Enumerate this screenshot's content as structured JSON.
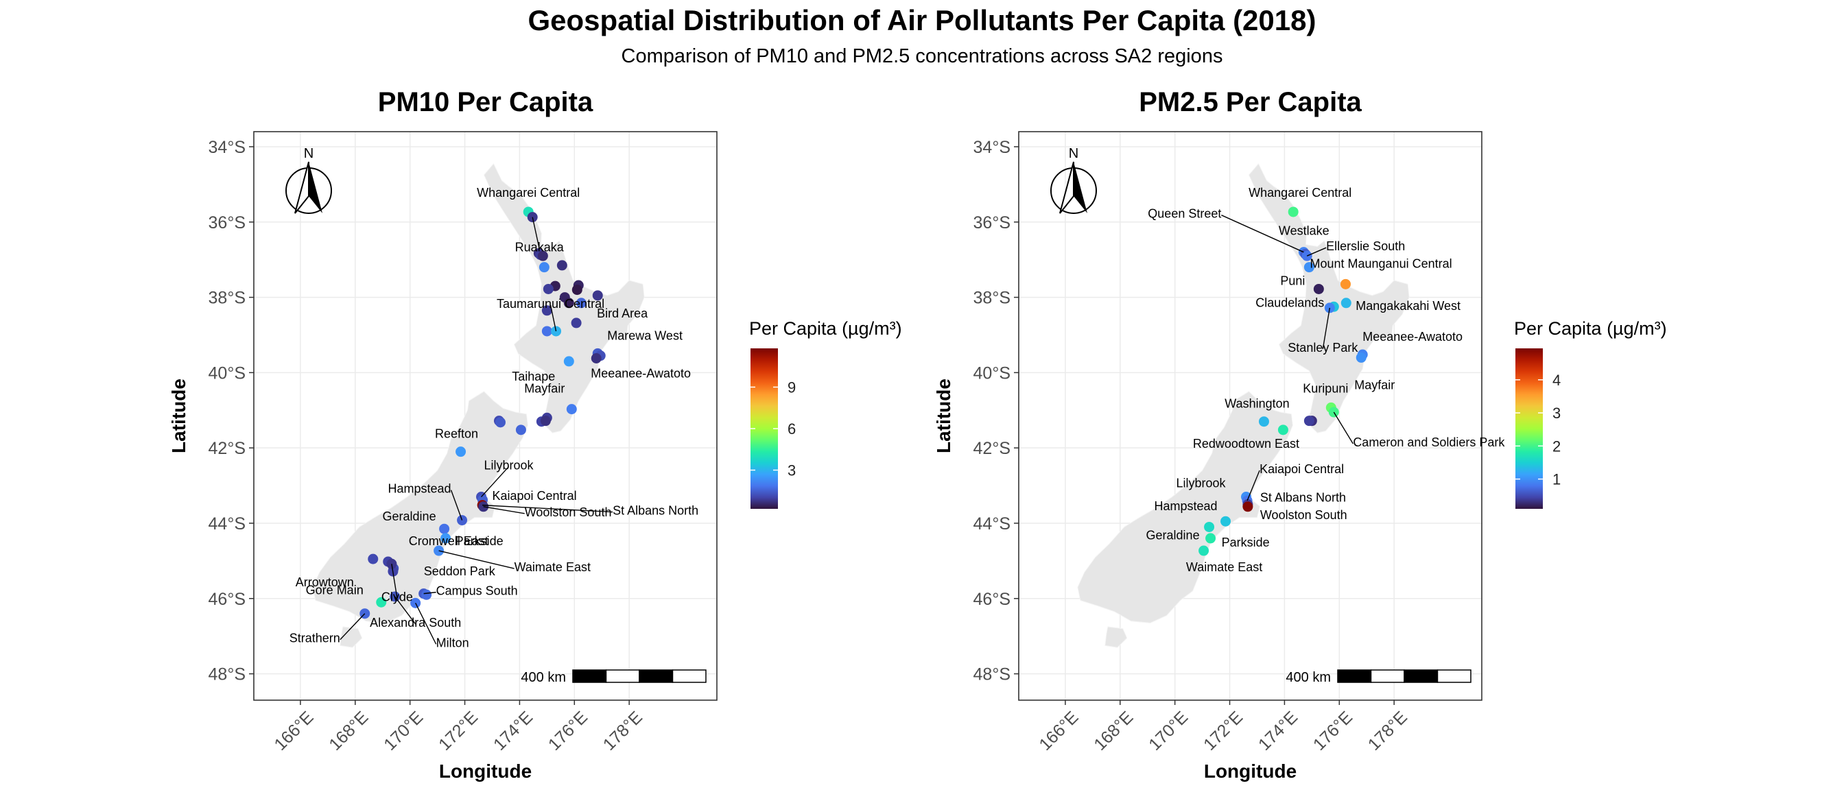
{
  "title": "Geospatial Distribution of Air Pollutants Per Capita (2018)",
  "subtitle": "Comparison of PM10 and PM2.5 concentrations across SA2 regions",
  "land_color": "#e6e6e6",
  "grid_color": "#ebebeb",
  "colormap": [
    "#30123b",
    "#4145ab",
    "#4675ed",
    "#39a2fc",
    "#1bcfd4",
    "#24eca6",
    "#61fc6c",
    "#a4fc3b",
    "#d1e834",
    "#f3c63a",
    "#fe9b2d",
    "#f36315",
    "#d93806",
    "#b11901",
    "#7a0403"
  ],
  "axes": {
    "xlabel": "Longitude",
    "ylabel": "Latitude",
    "xlim": [
      164.3,
      181.2
    ],
    "ylim": [
      -48.7,
      -33.6
    ],
    "xticks": [
      166,
      168,
      170,
      172,
      174,
      176,
      178
    ],
    "xtick_labels": [
      "166°E",
      "168°E",
      "170°E",
      "172°E",
      "174°E",
      "176°E",
      "178°E"
    ],
    "yticks": [
      -34,
      -36,
      -38,
      -40,
      -42,
      -44,
      -46,
      -48
    ],
    "ytick_labels": [
      "34°S",
      "36°S",
      "38°S",
      "40°S",
      "42°S",
      "44°S",
      "46°S",
      "48°S"
    ]
  },
  "north_arrow": "N",
  "scale_bar": "400 km",
  "chart_data": [
    {
      "type": "scatter",
      "title": "PM10 Per Capita",
      "xlabel": "Longitude",
      "ylabel": "Latitude",
      "legend_title": "Per Capita (µg/m³)",
      "legend_range": [
        0.2,
        11.8
      ],
      "legend_ticks": [
        3,
        6,
        9
      ],
      "legend_placement": "right",
      "points": [
        {
          "lon": 174.32,
          "lat": -35.73,
          "value": 4.0,
          "label": "Whangarei Central",
          "ldx": 0,
          "ldy": -22,
          "anchor": "middle"
        },
        {
          "lon": 174.47,
          "lat": -35.87,
          "value": 0.8,
          "label": "Ruakaka",
          "ldx": 10,
          "ldy": 50,
          "anchor": "middle",
          "leader": true
        },
        {
          "lon": 174.7,
          "lat": -36.83,
          "value": 0.7
        },
        {
          "lon": 174.76,
          "lat": -36.87,
          "value": 0.9
        },
        {
          "lon": 174.85,
          "lat": -36.9,
          "value": 0.6
        },
        {
          "lon": 174.9,
          "lat": -37.2,
          "value": 2.2
        },
        {
          "lon": 175.55,
          "lat": -37.15,
          "value": 0.7
        },
        {
          "lon": 175.3,
          "lat": -37.7,
          "value": 0.4
        },
        {
          "lon": 176.15,
          "lat": -37.68,
          "value": 0.5
        },
        {
          "lon": 176.1,
          "lat": -37.8,
          "value": 0.3
        },
        {
          "lon": 175.05,
          "lat": -37.78,
          "value": 0.9
        },
        {
          "lon": 175.65,
          "lat": -38.0,
          "value": 0.5
        },
        {
          "lon": 175.8,
          "lat": -38.15,
          "value": 0.4
        },
        {
          "lon": 176.25,
          "lat": -38.15,
          "value": 1.6
        },
        {
          "lon": 176.85,
          "lat": -37.95,
          "value": 0.8
        },
        {
          "lon": 175.0,
          "lat": -38.35,
          "value": 0.9
        },
        {
          "lon": 176.07,
          "lat": -38.68,
          "value": 0.9,
          "label": "Bird Area",
          "ldx": 30,
          "ldy": -8,
          "anchor": "start"
        },
        {
          "lon": 175.0,
          "lat": -38.9,
          "value": 1.8
        },
        {
          "lon": 176.85,
          "lat": -39.49,
          "value": 1.4,
          "label": "Marewa West",
          "ldx": 14,
          "ldy": -20,
          "anchor": "start"
        },
        {
          "lon": 176.95,
          "lat": -39.55,
          "value": 1.2
        },
        {
          "lon": 176.8,
          "lat": -39.62,
          "value": 0.7,
          "label": "Meeanee-Awatoto",
          "ldx": -8,
          "ldy": 28,
          "anchor": "start"
        },
        {
          "lon": 175.8,
          "lat": -39.7,
          "value": 2.6,
          "label": "Taihape",
          "ldx": -20,
          "ldy": 28,
          "anchor": "end"
        },
        {
          "lon": 175.33,
          "lat": -38.9,
          "value": 3.0,
          "label": "Taumarunui Central",
          "ldx": -8,
          "ldy": -34,
          "anchor": "middle",
          "leader": true
        },
        {
          "lon": 175.9,
          "lat": -40.97,
          "value": 2.0,
          "label": "Mayfair",
          "ldx": -10,
          "ldy": -24,
          "anchor": "end"
        },
        {
          "lon": 174.8,
          "lat": -41.3,
          "value": 1.0
        },
        {
          "lon": 175.0,
          "lat": -41.2,
          "value": 0.9
        },
        {
          "lon": 174.95,
          "lat": -41.28,
          "value": 0.7
        },
        {
          "lon": 173.25,
          "lat": -41.28,
          "value": 1.1
        },
        {
          "lon": 173.3,
          "lat": -41.32,
          "value": 1.4
        },
        {
          "lon": 174.05,
          "lat": -41.52,
          "value": 1.6
        },
        {
          "lon": 171.85,
          "lat": -42.1,
          "value": 2.5,
          "label": "Reefton",
          "ldx": -6,
          "ldy": -20,
          "anchor": "middle"
        },
        {
          "lon": 172.6,
          "lat": -43.3,
          "value": 1.2,
          "label": "Lilybrook",
          "ldx": 40,
          "ldy": -40,
          "anchor": "middle",
          "leader": true
        },
        {
          "lon": 172.65,
          "lat": -43.38,
          "value": 1.5,
          "label": "Kaiapoi Central",
          "ldx": 14,
          "ldy": 0,
          "anchor": "start"
        },
        {
          "lon": 172.64,
          "lat": -43.52,
          "value": 11.6,
          "label": "St Albans North",
          "ldx": 190,
          "ldy": 14,
          "anchor": "start",
          "leader": true
        },
        {
          "lon": 172.68,
          "lat": -43.56,
          "value": 0.7,
          "label": "Woolston South",
          "ldx": 60,
          "ldy": 14,
          "anchor": "start",
          "leader": true
        },
        {
          "lon": 171.9,
          "lat": -43.92,
          "value": 1.5,
          "label": "Hampstead",
          "ldx": -16,
          "ldy": -40,
          "anchor": "end",
          "leader": true
        },
        {
          "lon": 171.25,
          "lat": -44.15,
          "value": 1.8,
          "label": "Geraldine",
          "ldx": -12,
          "ldy": -12,
          "anchor": "end"
        },
        {
          "lon": 171.3,
          "lat": -44.4,
          "value": 2.5,
          "label": "Parkside",
          "ldx": 14,
          "ldy": 10,
          "anchor": "start"
        },
        {
          "lon": 171.05,
          "lat": -44.73,
          "value": 2.2,
          "label": "Waimate East",
          "ldx": 110,
          "ldy": 30,
          "anchor": "start",
          "leader": true
        },
        {
          "lon": 169.2,
          "lat": -45.02,
          "value": 1.0,
          "label": "Cromwell East",
          "ldx": 30,
          "ldy": -24,
          "anchor": "start"
        },
        {
          "lon": 168.65,
          "lat": -44.95,
          "value": 1.1,
          "label": "Arrowtown",
          "ldx": -28,
          "ldy": 40,
          "anchor": "end"
        },
        {
          "lon": 169.4,
          "lat": -45.2,
          "value": 1.2,
          "label": "Seddon Park",
          "ldx": 44,
          "ldy": 10,
          "anchor": "start"
        },
        {
          "lon": 169.38,
          "lat": -45.28,
          "value": 1.0
        },
        {
          "lon": 169.33,
          "lat": -45.08,
          "value": 0.8,
          "label": "Clyde",
          "ldx": 8,
          "ldy": 54,
          "anchor": "middle",
          "leader": true
        },
        {
          "lon": 170.5,
          "lat": -45.87,
          "value": 1.4,
          "label": "Campus South",
          "ldx": 18,
          "ldy": 2,
          "anchor": "start",
          "leader": true
        },
        {
          "lon": 170.6,
          "lat": -45.9,
          "value": 1.7
        },
        {
          "lon": 170.2,
          "lat": -46.12,
          "value": 1.9,
          "label": "Milton",
          "ldx": 30,
          "ldy": 64,
          "anchor": "start",
          "leader": true
        },
        {
          "lon": 168.95,
          "lat": -46.1,
          "value": 4.2,
          "label": "Gore Main",
          "ldx": -26,
          "ldy": -12,
          "anchor": "end"
        },
        {
          "lon": 169.45,
          "lat": -45.95,
          "value": 1.3,
          "label": "Alexandra South",
          "ldx": 30,
          "ldy": 44,
          "anchor": "middle",
          "leader": true
        },
        {
          "lon": 168.35,
          "lat": -46.4,
          "value": 1.6,
          "label": "Strathern",
          "ldx": -36,
          "ldy": 42,
          "anchor": "end",
          "leader": true
        }
      ]
    },
    {
      "type": "scatter",
      "title": "PM2.5 Per Capita",
      "xlabel": "Longitude",
      "ylabel": "Latitude",
      "legend_title": "Per Capita (µg/m³)",
      "legend_range": [
        0.1,
        4.95
      ],
      "legend_ticks": [
        1,
        2,
        3,
        4
      ],
      "legend_placement": "right",
      "points": [
        {
          "lon": 174.32,
          "lat": -35.73,
          "value": 2.0,
          "label": "Whangarei Central",
          "ldx": 10,
          "ldy": -22,
          "anchor": "middle"
        },
        {
          "lon": 174.7,
          "lat": -36.8,
          "value": 0.9,
          "label": "Queen Street",
          "ldx": -120,
          "ldy": -50,
          "anchor": "end",
          "leader": true
        },
        {
          "lon": 174.76,
          "lat": -36.85,
          "value": 0.6,
          "label": "Westlake",
          "ldx": -2,
          "ldy": -28,
          "anchor": "middle"
        },
        {
          "lon": 174.82,
          "lat": -36.9,
          "value": 0.8,
          "label": "Ellerslie South",
          "ldx": 28,
          "ldy": -8,
          "anchor": "start",
          "leader": true
        },
        {
          "lon": 174.9,
          "lat": -37.2,
          "value": 1.0
        },
        {
          "lon": 175.25,
          "lat": -37.78,
          "value": 0.2,
          "label": "Puni",
          "ldx": -20,
          "ldy": -6,
          "anchor": "end"
        },
        {
          "lon": 176.23,
          "lat": -37.65,
          "value": 3.6,
          "label": "Mount Maunganui Central",
          "ldx": -52,
          "ldy": -24,
          "anchor": "start"
        },
        {
          "lon": 176.25,
          "lat": -38.15,
          "value": 1.3,
          "label": "Mangakakahi West",
          "ldx": 14,
          "ldy": 10,
          "anchor": "start"
        },
        {
          "lon": 175.8,
          "lat": -38.25,
          "value": 1.4,
          "label": "Claudelands",
          "ldx": -14,
          "ldy": 0,
          "anchor": "end"
        },
        {
          "lon": 175.65,
          "lat": -38.28,
          "value": 0.9,
          "label": "Stanley Park",
          "ldx": -10,
          "ldy": 64,
          "anchor": "middle",
          "leader": true
        },
        {
          "lon": 176.85,
          "lat": -39.52,
          "value": 0.9,
          "label": "Meeanee-Awatoto",
          "ldx": 0,
          "ldy": -20,
          "anchor": "start"
        },
        {
          "lon": 176.8,
          "lat": -39.6,
          "value": 1.0,
          "label": "Mayfair",
          "ldx": -10,
          "ldy": 46,
          "anchor": "start"
        },
        {
          "lon": 175.7,
          "lat": -40.93,
          "value": 2.2,
          "label": "Kuripuni",
          "ldx": -8,
          "ldy": -22,
          "anchor": "middle"
        },
        {
          "lon": 175.0,
          "lat": -41.28,
          "value": 0.3
        },
        {
          "lon": 174.9,
          "lat": -41.28,
          "value": 0.4
        },
        {
          "lon": 175.8,
          "lat": -41.05,
          "value": 2.0,
          "label": "Cameron and Soldiers Park",
          "ldx": 28,
          "ldy": 50,
          "anchor": "start",
          "leader": true
        },
        {
          "lon": 173.25,
          "lat": -41.3,
          "value": 1.3,
          "label": "Washington",
          "ldx": -10,
          "ldy": -20,
          "anchor": "middle"
        },
        {
          "lon": 173.95,
          "lat": -41.52,
          "value": 1.8,
          "label": "Redwoodtown East",
          "ldx": -54,
          "ldy": 26,
          "anchor": "middle"
        },
        {
          "lon": 172.6,
          "lat": -43.3,
          "value": 1.0,
          "label": "Lilybrook",
          "ldx": -30,
          "ldy": -14,
          "anchor": "end"
        },
        {
          "lon": 172.64,
          "lat": -43.4,
          "value": 0.8,
          "label": "Kaiapoi Central",
          "ldx": 18,
          "ldy": -40,
          "anchor": "start",
          "leader": true
        },
        {
          "lon": 172.66,
          "lat": -43.5,
          "value": 0.4,
          "label": "St Albans North",
          "ldx": 18,
          "ldy": -4,
          "anchor": "start"
        },
        {
          "lon": 172.66,
          "lat": -43.56,
          "value": 4.9,
          "label": "Woolston South",
          "ldx": 18,
          "ldy": 18,
          "anchor": "start"
        },
        {
          "lon": 171.85,
          "lat": -43.95,
          "value": 1.4,
          "label": "Hampstead",
          "ldx": -12,
          "ldy": -16,
          "anchor": "end"
        },
        {
          "lon": 171.25,
          "lat": -44.1,
          "value": 1.6,
          "label": "Geraldine",
          "ldx": -14,
          "ldy": 18,
          "anchor": "end"
        },
        {
          "lon": 171.3,
          "lat": -44.4,
          "value": 1.8,
          "label": "Parkside",
          "ldx": 16,
          "ldy": 12,
          "anchor": "start"
        },
        {
          "lon": 171.05,
          "lat": -44.73,
          "value": 1.7,
          "label": "Waimate East",
          "ldx": 30,
          "ldy": 30,
          "anchor": "middle"
        }
      ]
    }
  ]
}
